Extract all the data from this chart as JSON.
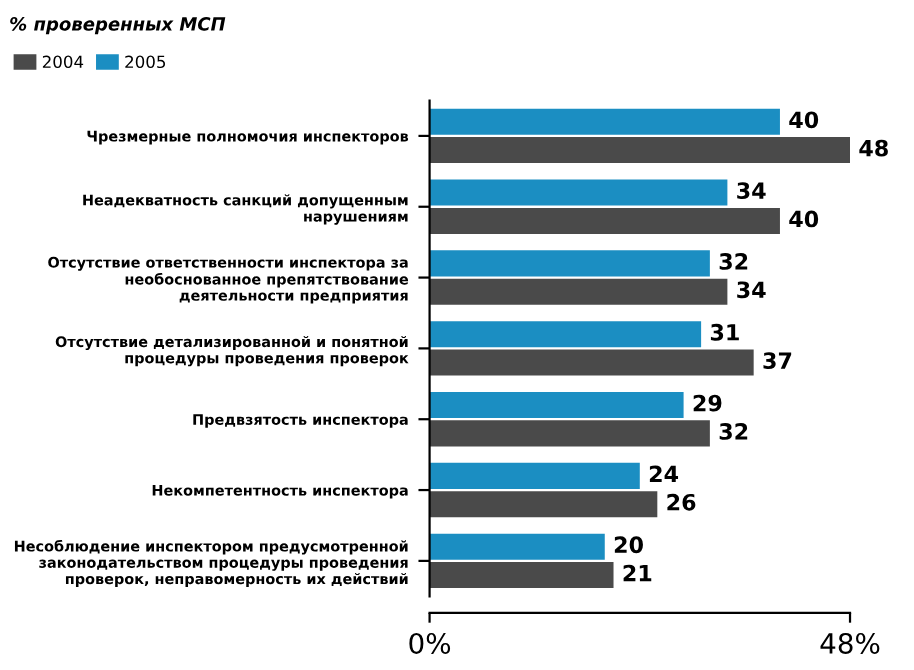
{
  "chart_data": {
    "type": "bar",
    "orientation": "horizontal",
    "title": "% проверенных МСП",
    "categories": [
      "Чрезмерные полномочия инспекторов",
      "Неадекватность санкций допущенным\nнарушениям",
      "Отсутствие ответственности инспектора за\nнеобоснованное препятствование\nдеятельности предприятия",
      "Отсутствие детализированной и понятной\nпроцедуры проведения проверок",
      "Предвзятость инспектора",
      "Некомпетентность инспектора",
      "Несоблюдение инспектором предусмотренной\nзаконодательством процедуры проведения\nпроверок, неправомерность их действий"
    ],
    "series": [
      {
        "name": "2004",
        "color": "#4a4a4a",
        "values": [
          48,
          40,
          34,
          37,
          32,
          26,
          21
        ]
      },
      {
        "name": "2005",
        "color": "#1b8ec2",
        "values": [
          40,
          34,
          32,
          31,
          29,
          24,
          20
        ]
      }
    ],
    "xlim": [
      0,
      48
    ],
    "xticks": [
      {
        "value": 0,
        "label": "0%"
      },
      {
        "value": 48,
        "label": "48%"
      }
    ],
    "data_labels": true,
    "legend": "top left",
    "grid": false
  }
}
